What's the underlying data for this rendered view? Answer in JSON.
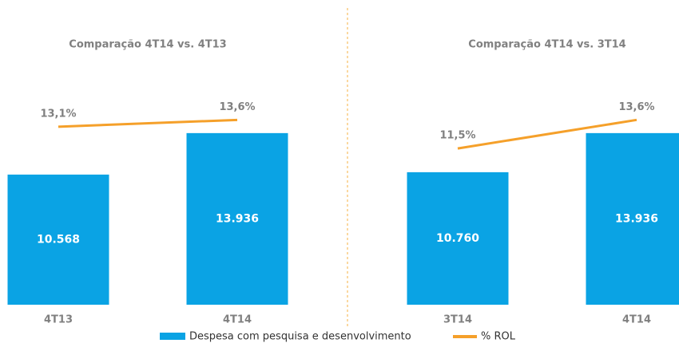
{
  "chart_data": [
    {
      "type": "bar",
      "title": "Comparação 4T14 vs. 4T13",
      "categories": [
        "4T13",
        "4T14"
      ],
      "ylim": [
        0,
        16000
      ],
      "y2lim": [
        0,
        14.5
      ],
      "series": [
        {
          "name": "Despesa com pesquisa e desenvolvimento",
          "type": "bar",
          "color": "#0aa3e4",
          "values": [
            10568,
            13936
          ],
          "value_labels": [
            "10.568",
            "13.936"
          ]
        },
        {
          "name": "% ROL",
          "type": "line",
          "axis": "y2",
          "color": "#f5a02a",
          "values": [
            13.1,
            13.6
          ],
          "value_labels": [
            "13,1%",
            "13,6%"
          ]
        }
      ]
    },
    {
      "type": "bar",
      "title": "Comparação 4T14 vs. 3T14",
      "categories": [
        "3T14",
        "4T14"
      ],
      "ylim": [
        0,
        16000
      ],
      "y2lim": [
        0,
        14.5
      ],
      "series": [
        {
          "name": "Despesa com pesquisa e desenvolvimento",
          "type": "bar",
          "color": "#0aa3e4",
          "values": [
            10760,
            13936
          ],
          "value_labels": [
            "10.760",
            "13.936"
          ]
        },
        {
          "name": "% ROL",
          "type": "line",
          "axis": "y2",
          "color": "#f5a02a",
          "values": [
            11.5,
            13.6
          ],
          "value_labels": [
            "11,5%",
            "13,6%"
          ]
        }
      ]
    }
  ]
}
